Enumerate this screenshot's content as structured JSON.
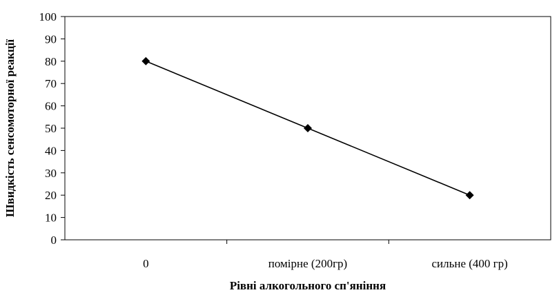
{
  "chart_data": {
    "type": "line",
    "categories": [
      "0",
      "помірне (200гр)",
      "сильне (400 гр)"
    ],
    "series": [
      {
        "values": [
          80,
          50,
          20
        ],
        "color": "#000000",
        "marker": "diamond"
      }
    ],
    "xlabel": "Рівні алкогольного сп'яніння",
    "ylabel": "Швидкість сенсомоторної реакції",
    "ylim": [
      0,
      100
    ],
    "yticks": [
      0,
      10,
      20,
      30,
      40,
      50,
      60,
      70,
      80,
      90,
      100
    ],
    "grid": false,
    "legend": "none"
  }
}
